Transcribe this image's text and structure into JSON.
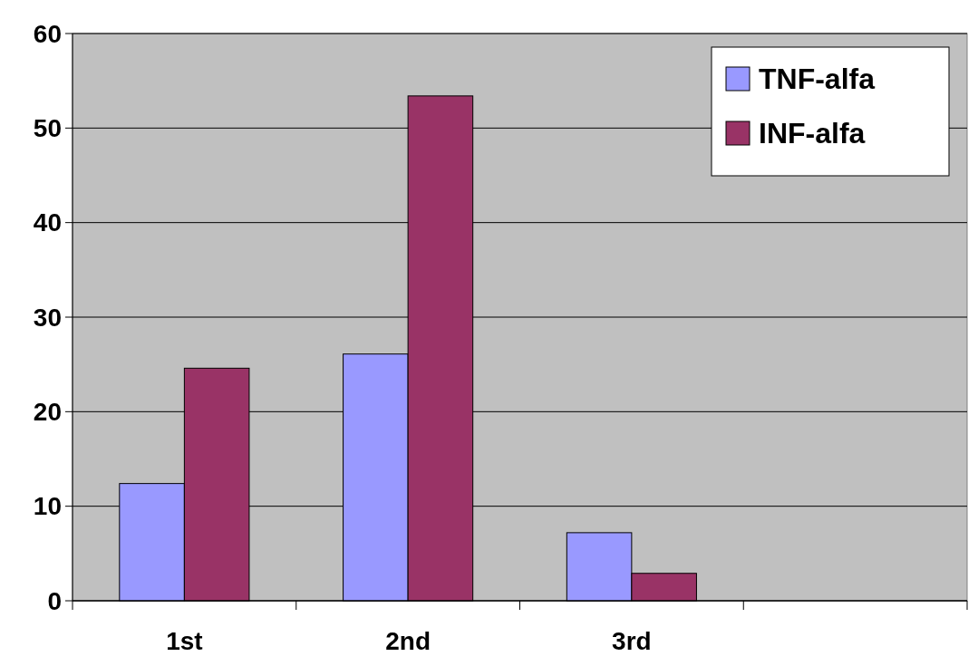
{
  "chart_data": {
    "type": "bar",
    "categories": [
      "1st",
      "2nd",
      "3rd",
      null
    ],
    "series": [
      {
        "name": "TNF-alfa",
        "color": "#9999ff",
        "values": [
          12.4,
          26.1,
          7.2,
          null
        ]
      },
      {
        "name": "INF-alfa",
        "color": "#993366",
        "values": [
          24.6,
          53.4,
          2.9,
          null
        ]
      }
    ],
    "ylim": [
      0,
      60
    ],
    "yticks": [
      0,
      10,
      20,
      30,
      40,
      50,
      60
    ],
    "grid": "y",
    "legend": "top right"
  }
}
